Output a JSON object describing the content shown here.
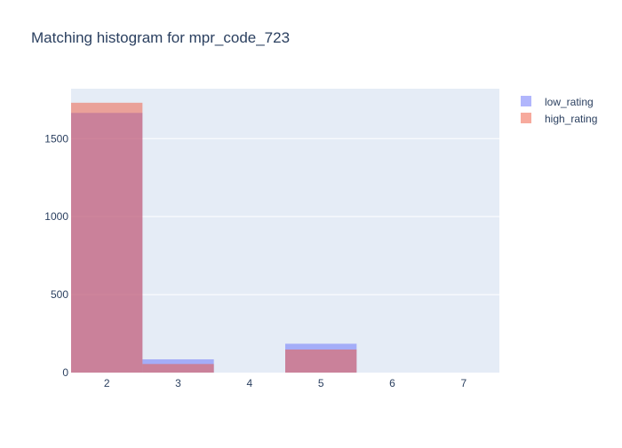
{
  "chart_data": {
    "type": "bar",
    "title": "Matching histogram for mpr_code_723",
    "xlabel": "",
    "ylabel": "",
    "barmode": "overlay",
    "categories": [
      "2",
      "3",
      "4",
      "5",
      "6",
      "7"
    ],
    "series": [
      {
        "name": "low_rating",
        "values": [
          1665,
          85,
          0,
          185,
          0,
          0
        ],
        "color": "#636efa",
        "opacity": 0.5
      },
      {
        "name": "high_rating",
        "values": [
          1730,
          55,
          0,
          148,
          0,
          0
        ],
        "color": "#ef553b",
        "opacity": 0.5
      }
    ],
    "x_range": [
      1.5,
      7.5
    ],
    "ylim": [
      0,
      1820
    ],
    "y_ticks": [
      0,
      500,
      1000,
      1500
    ],
    "grid": true,
    "legend_position": "top-right",
    "plot_background": "#e5ecf6",
    "axis_text_color": "#2a3f5f"
  }
}
